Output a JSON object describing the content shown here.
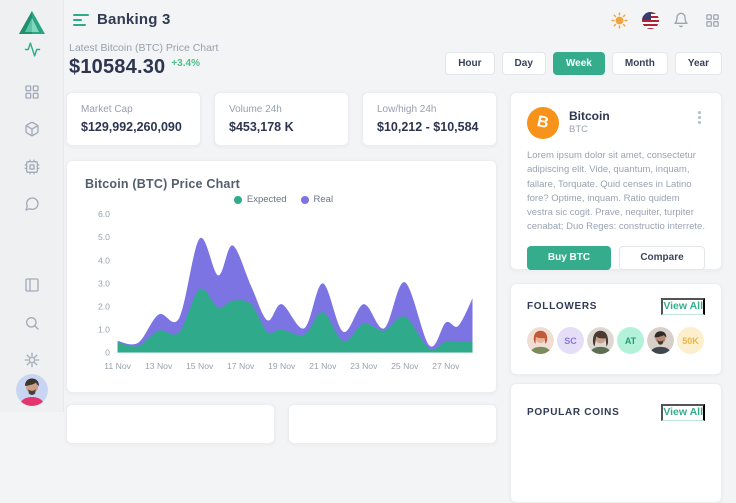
{
  "app": {
    "title": "Banking 3"
  },
  "topbar": {
    "icons": [
      "theme-sun",
      "language-flag-us",
      "notifications-bell",
      "apps-grid"
    ]
  },
  "sidebar": {
    "items": [
      "activity",
      "dashboard-grid",
      "products-box",
      "system-cpu",
      "messages-chat",
      "layout-panels",
      "search",
      "settings-gear"
    ],
    "active": "activity"
  },
  "price_summary": {
    "label": "Latest Bitcoin (BTC) Price Chart",
    "price": "$10584.30",
    "change": "+3.4%"
  },
  "time_filters": {
    "options": [
      "Hour",
      "Day",
      "Week",
      "Month",
      "Year"
    ],
    "selected": "Week"
  },
  "stats": [
    {
      "label": "Market Cap",
      "value": "$129,992,260,090"
    },
    {
      "label": "Volume 24h",
      "value": "$453,178 K"
    },
    {
      "label": "Low/high 24h",
      "value": "$10,212 - $10,584"
    }
  ],
  "chart_data": {
    "type": "area",
    "title": "Bitcoin (BTC) Price Chart",
    "legend": [
      "Expected",
      "Real"
    ],
    "legend_position": "top-center",
    "grid": false,
    "ylim": [
      0,
      6
    ],
    "y_ticks": [
      "6.0",
      "5.0",
      "4.0",
      "3.0",
      "2.0",
      "1.0",
      "0"
    ],
    "x_tick_labels": [
      "11 Nov",
      "13 Nov",
      "15 Nov",
      "17 Nov",
      "19 Nov",
      "21 Nov",
      "23 Nov",
      "25 Nov",
      "27 Nov"
    ],
    "x_range_days": [
      11,
      28.3
    ],
    "x_days": [
      11,
      12,
      13,
      14,
      15,
      15.9,
      16.6,
      17.5,
      18.3,
      19,
      20.1,
      21,
      22,
      23,
      24,
      25,
      26.2,
      27,
      27.6,
      28.3
    ],
    "series": [
      {
        "name": "Real",
        "color": "#7d74e4",
        "values": [
          0.5,
          0.42,
          1.65,
          1.5,
          4.95,
          3.35,
          4.65,
          2.9,
          1.4,
          2.1,
          1.05,
          3.0,
          0.9,
          2.1,
          1.05,
          3.05,
          0.3,
          1.3,
          1.15,
          2.35
        ]
      },
      {
        "name": "Expected",
        "color": "#2fab8b",
        "values": [
          0.45,
          0.28,
          0.95,
          0.88,
          2.75,
          1.95,
          2.25,
          2.1,
          0.9,
          1.0,
          0.78,
          1.75,
          0.5,
          1.25,
          0.95,
          1.55,
          0.15,
          0.5,
          0.45,
          0.5
        ]
      }
    ]
  },
  "coin_card": {
    "icon_letter": "B",
    "name": "Bitcoin",
    "symbol": "BTC",
    "description": "Lorem ipsum dolor sit amet, consectetur adipiscing elit. Vide, quantum, inquam, fallare, Torquate. Quid censes in Latino fore? Optime, inquam. Ratio quidem vestra sic cogit. Prave, nequiter, turpiter cenabat; Duo Reges: constructio interrete.",
    "buy_label": "Buy BTC",
    "compare_label": "Compare"
  },
  "followers": {
    "title": "FOLLOWERS",
    "view_all": "View All",
    "avatars": [
      {
        "type": "photo",
        "label": "follower-photo-1"
      },
      {
        "type": "initials",
        "text": "SC",
        "bg": "#e4def7",
        "fg": "#8678dd"
      },
      {
        "type": "photo",
        "label": "follower-photo-2"
      },
      {
        "type": "initials",
        "text": "AT",
        "bg": "#b4f1d9",
        "fg": "#1f9d7a"
      },
      {
        "type": "photo",
        "label": "follower-photo-3"
      },
      {
        "type": "initials",
        "text": "50K",
        "bg": "#fcefcd",
        "fg": "#eab64c"
      }
    ]
  },
  "popular_coins": {
    "title": "POPULAR COINS",
    "view_all": "View All"
  },
  "colors": {
    "accent": "#2fab8b",
    "real_series": "#7d74e4",
    "expected_series": "#2fab8b",
    "positive": "#4cbf8b",
    "bitcoin_orange": "#f7931a"
  }
}
